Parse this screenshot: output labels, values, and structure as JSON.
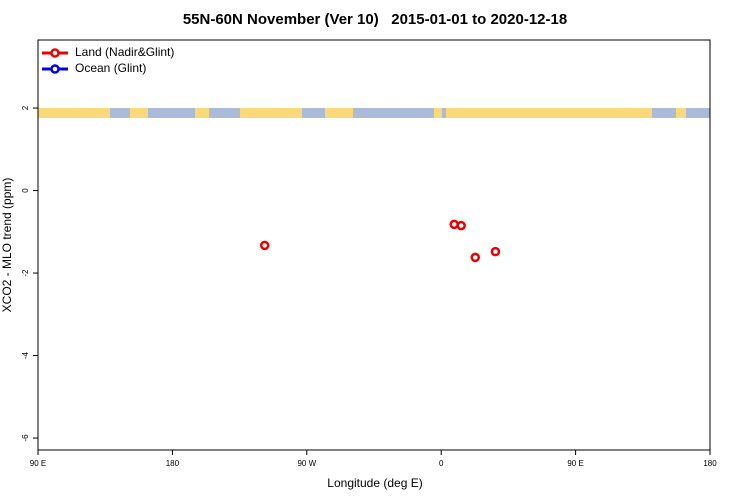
{
  "chart_data": {
    "type": "scatter",
    "title": "55N-60N November (Ver 10)   2015-01-01 to 2020-12-18",
    "x_label": "Longitude (deg E)",
    "y_label": "XCO2 - MLO trend (ppm)",
    "xlim": [
      -270,
      180
    ],
    "xticks": [
      {
        "value": -270,
        "label": "90 E"
      },
      {
        "value": -180,
        "label": "180"
      },
      {
        "value": -90,
        "label": "90 W"
      },
      0,
      {
        "value": 90,
        "label": "90 E"
      },
      180
    ],
    "ylim": [
      -6.29,
      3.65
    ],
    "yticks": [
      -6,
      -4,
      -2,
      0,
      2
    ],
    "legend": "top-left",
    "series": [
      {
        "name": "Land (Nadir&Glint)",
        "color": "#ee0000",
        "x": [
          -118.2,
          8.7,
          13.4,
          22.8,
          36.3
        ],
        "values": [
          -1.33,
          -0.82,
          -0.85,
          -1.62,
          -1.48
        ]
      },
      {
        "name": "Ocean (Glint)",
        "color": "#0000ee",
        "x": [],
        "values": []
      }
    ]
  }
}
